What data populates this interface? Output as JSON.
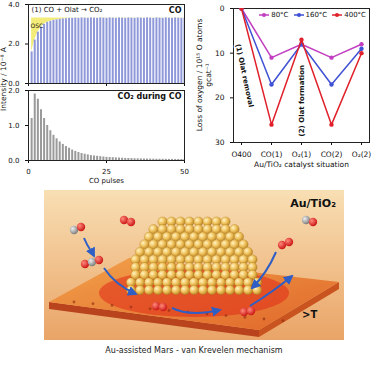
{
  "chart_data": [
    {
      "type": "bar",
      "title": "CO",
      "y_label": "Intensity / 10⁻⁸ A",
      "annotations": [
        "(1) CO + Olat → CO₂",
        "OSC"
      ],
      "x": [
        1,
        2,
        3,
        4,
        5,
        6,
        7,
        8,
        9,
        10,
        11,
        12,
        13,
        14,
        15,
        16,
        17,
        18,
        19,
        20,
        21,
        22,
        23,
        24,
        25,
        26,
        27,
        28,
        29,
        30,
        31,
        32,
        33,
        34,
        35,
        36,
        37,
        38,
        39,
        40,
        41,
        42,
        43,
        44,
        45,
        46,
        47,
        48,
        49,
        50
      ],
      "values": [
        1.6,
        2.2,
        2.6,
        2.85,
        3.0,
        3.1,
        3.15,
        3.2,
        3.22,
        3.25,
        3.27,
        3.28,
        3.3,
        3.3,
        3.31,
        3.3,
        3.32,
        3.31,
        3.3,
        3.32,
        3.31,
        3.3,
        3.32,
        3.31,
        3.3,
        3.32,
        3.31,
        3.3,
        3.32,
        3.31,
        3.3,
        3.32,
        3.31,
        3.3,
        3.32,
        3.31,
        3.3,
        3.32,
        3.31,
        3.3,
        3.32,
        3.31,
        3.3,
        3.32,
        3.31,
        3.3,
        3.32,
        3.31,
        3.3,
        3.32
      ],
      "color": "#8f98d9",
      "xlim": [
        0,
        50
      ],
      "xticks": [
        0,
        25,
        50
      ],
      "ylim": [
        0,
        4
      ],
      "yticks": [
        0,
        2,
        4
      ],
      "tick_labels": "y"
    },
    {
      "type": "bar",
      "title": "CO₂ during CO",
      "x_label": "CO pulses",
      "x": [
        1,
        2,
        3,
        4,
        5,
        6,
        7,
        8,
        9,
        10,
        11,
        12,
        13,
        14,
        15,
        16,
        17,
        18,
        19,
        20,
        21,
        22,
        23,
        24,
        25,
        26,
        27,
        28,
        29,
        30,
        31,
        32,
        33,
        34,
        35,
        36,
        37,
        38,
        39,
        40,
        41,
        42,
        43,
        44,
        45,
        46,
        47,
        48,
        49,
        50
      ],
      "values": [
        1.2,
        1.9,
        1.75,
        1.45,
        1.2,
        1.0,
        0.85,
        0.72,
        0.62,
        0.53,
        0.46,
        0.4,
        0.35,
        0.3,
        0.26,
        0.23,
        0.2,
        0.18,
        0.16,
        0.14,
        0.13,
        0.12,
        0.11,
        0.1,
        0.09,
        0.085,
        0.08,
        0.075,
        0.07,
        0.065,
        0.06,
        0.057,
        0.054,
        0.05,
        0.048,
        0.046,
        0.044,
        0.042,
        0.04,
        0.038,
        0.036,
        0.035,
        0.034,
        0.033,
        0.032,
        0.031,
        0.03,
        0.03,
        0.029,
        0.028
      ],
      "color": "#9a9a9a",
      "xlim": [
        0,
        50
      ],
      "xticks": [
        0,
        25,
        50
      ],
      "ylim": [
        0,
        2
      ],
      "yticks": [
        0,
        1,
        2
      ]
    },
    {
      "type": "line",
      "x_label": "Au/TiO₂ catalyst situation",
      "y_label": "Loss of oxygen / 10¹⁵ O atoms gcat⁻¹",
      "annotations": [
        "(1) Olat removal",
        "(2) Olat formation"
      ],
      "categories": [
        "O400",
        "CO(1)",
        "O₂(1)",
        "CO(2)",
        "O₂(2)"
      ],
      "series": [
        {
          "name": "80°C",
          "color": "#c23fc2",
          "values": [
            0,
            11,
            8,
            11,
            8
          ]
        },
        {
          "name": "160°C",
          "color": "#3f51d4",
          "values": [
            0,
            17,
            8,
            17,
            9
          ]
        },
        {
          "name": "400°C",
          "color": "#e0202a",
          "values": [
            0,
            26,
            7,
            26,
            10
          ]
        }
      ],
      "ylim": [
        30,
        0
      ],
      "yticks": [
        0,
        10,
        20,
        30
      ],
      "marker": "circle",
      "legend": "top-right"
    }
  ],
  "illustration": {
    "label": "Au/TiO₂",
    "annotation": ">T",
    "caption": "Au-assisted Mars - van Krevelen mechanism"
  }
}
